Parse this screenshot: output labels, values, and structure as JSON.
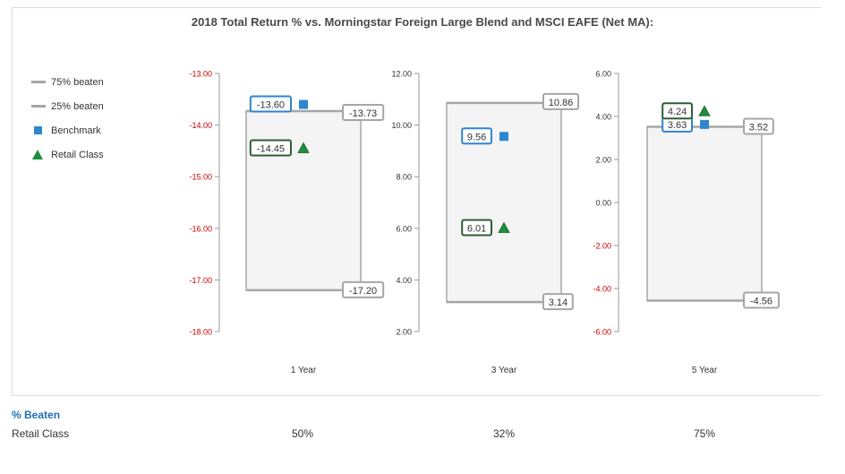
{
  "title": "2018 Total Return % vs. Morningstar Foreign Large Blend and MSCI EAFE (Net MA):",
  "legend": [
    {
      "label": "75% beaten",
      "icon": "line-icon",
      "color": "#a6a6a6"
    },
    {
      "label": "25% beaten",
      "icon": "line-icon",
      "color": "#a6a6a6"
    },
    {
      "label": "Benchmark",
      "icon": "square-icon",
      "color": "#2e86cf"
    },
    {
      "label": "Retail Class",
      "icon": "triangle-icon",
      "color": "#1e8f3c"
    }
  ],
  "chart_data": [
    {
      "type": "box",
      "xlabel": "1 Year",
      "ylim": [
        -18,
        -13
      ],
      "yticks": [
        "-13.00",
        "-14.00",
        "-15.00",
        "-16.00",
        "-17.00",
        "-18.00"
      ],
      "tick_color": "#cc0000",
      "top": -13.73,
      "top_label": "-13.73",
      "bottom": -17.2,
      "bottom_label": "-17.20",
      "benchmark": -13.6,
      "benchmark_label": "-13.60",
      "retail": -14.45,
      "retail_label": "-14.45"
    },
    {
      "type": "box",
      "xlabel": "3 Year",
      "ylim": [
        2,
        12
      ],
      "yticks": [
        "12.00",
        "10.00",
        "8.00",
        "6.00",
        "4.00",
        "2.00"
      ],
      "tick_color": "#333333",
      "top": 10.86,
      "top_label": "10.86",
      "bottom": 3.14,
      "bottom_label": "3.14",
      "benchmark": 9.56,
      "benchmark_label": "9.56",
      "retail": 6.01,
      "retail_label": "6.01"
    },
    {
      "type": "box",
      "xlabel": "5 Year",
      "ylim": [
        -6,
        6
      ],
      "yticks": [
        "6.00",
        "4.00",
        "2.00",
        "0.00",
        "-2.00",
        "-4.00",
        "-6.00"
      ],
      "tick_color": "mixed",
      "top": 3.52,
      "top_label": "3.52",
      "bottom": -4.56,
      "bottom_label": "-4.56",
      "benchmark": 3.63,
      "benchmark_label": "3.63",
      "retail": 4.24,
      "retail_label": "4.24"
    }
  ],
  "percent_beaten": {
    "heading": "% Beaten",
    "row_label": "Retail Class",
    "values": [
      "50%",
      "32%",
      "75%"
    ]
  }
}
